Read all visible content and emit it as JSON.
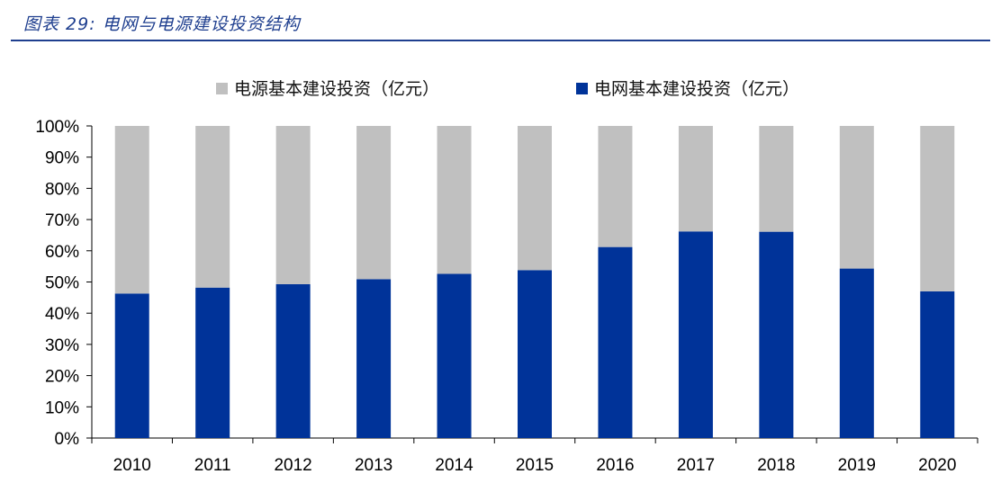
{
  "figure": {
    "label": "图表 29:",
    "caption": "电网与电源建设投资结构"
  },
  "chart_data": {
    "type": "bar",
    "stacked": true,
    "percent": true,
    "categories": [
      "2010",
      "2011",
      "2012",
      "2013",
      "2014",
      "2015",
      "2016",
      "2017",
      "2018",
      "2019",
      "2020"
    ],
    "series": [
      {
        "name": "电网基本建设投资（亿元）",
        "color": "#003399",
        "values": [
          46.3,
          48.2,
          49.3,
          50.9,
          52.6,
          53.8,
          61.2,
          66.2,
          66.1,
          54.3,
          47.0
        ]
      },
      {
        "name": "电源基本建设投资（亿元）",
        "color": "#c0c0c0",
        "values": [
          53.7,
          51.8,
          50.7,
          49.1,
          47.4,
          46.2,
          38.8,
          33.8,
          33.9,
          45.7,
          53.0
        ]
      }
    ],
    "yticks": [
      "0%",
      "10%",
      "20%",
      "30%",
      "40%",
      "50%",
      "60%",
      "70%",
      "80%",
      "90%",
      "100%"
    ],
    "ylim": [
      0,
      100
    ],
    "grid": false,
    "legend_position": "top"
  }
}
